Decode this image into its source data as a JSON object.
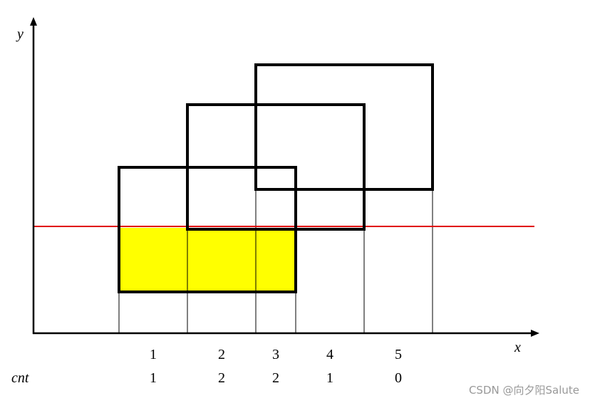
{
  "axes": {
    "x": "x",
    "y": "y"
  },
  "row_label": "cnt",
  "intervals": [
    {
      "label": "1",
      "cnt": "1"
    },
    {
      "label": "2",
      "cnt": "2"
    },
    {
      "label": "3",
      "cnt": "2"
    },
    {
      "label": "4",
      "cnt": "1"
    },
    {
      "label": "5",
      "cnt": "0"
    }
  ],
  "watermark": "CSDN @向夕阳Salute"
}
